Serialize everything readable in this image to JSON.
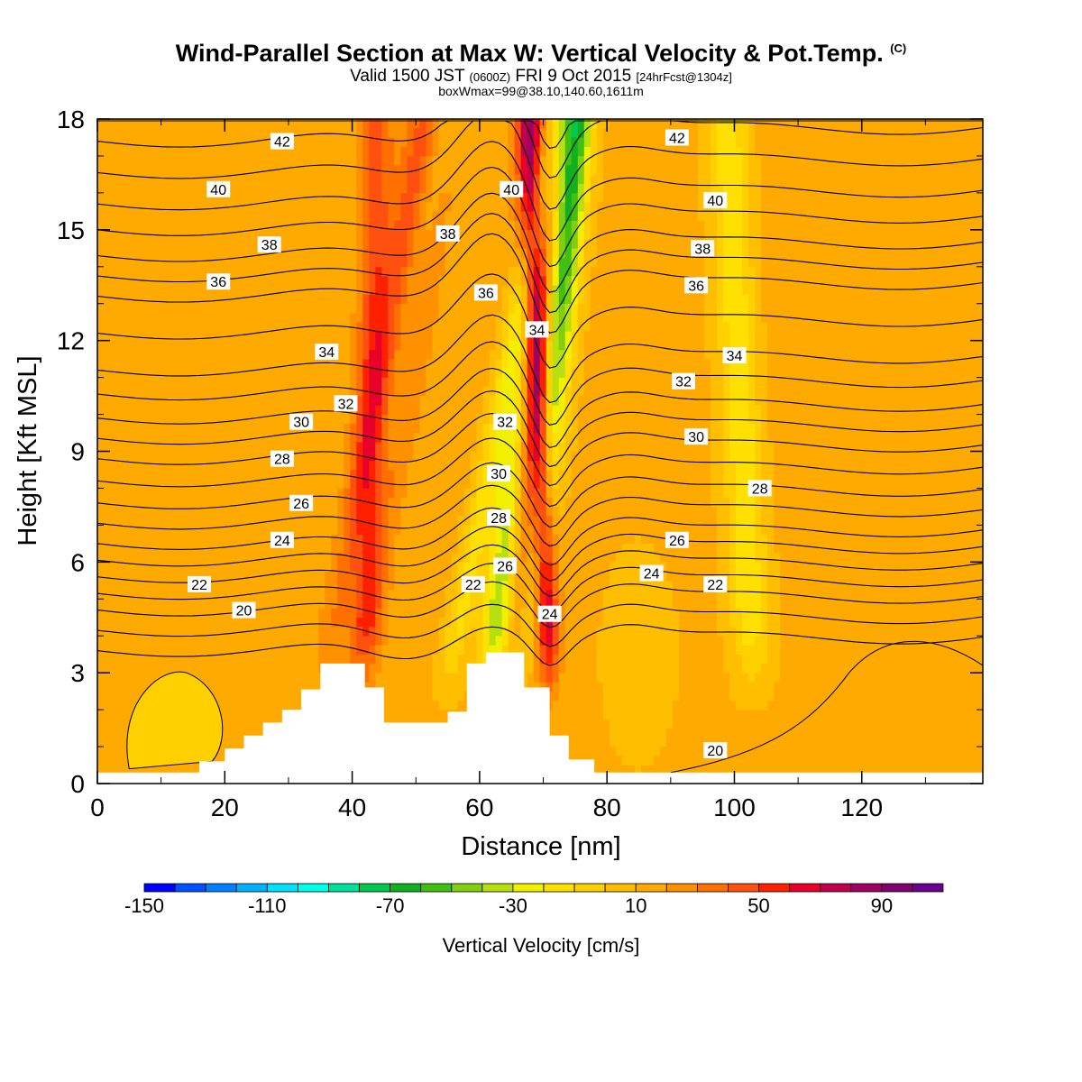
{
  "header": {
    "title": "Wind-Parallel Section at Max W: Vertical Velocity & Pot.Temp.",
    "copyright": "(C)",
    "valid_prefix": "Valid 1500 JST",
    "valid_utc": "(0600Z)",
    "valid_date": "FRI 9 Oct 2015",
    "forecast": "[24hrFcst@1304z]",
    "box_info": "boxWmax=99@38.10,140.60,1611m"
  },
  "chart_data": {
    "type": "heatmap",
    "xlabel": "Distance [nm]",
    "ylabel": "Height [Kft MSL]",
    "xlim": [
      0,
      139
    ],
    "ylim": [
      0,
      18
    ],
    "xticks": [
      "0",
      "20",
      "40",
      "60",
      "80",
      "100",
      "120"
    ],
    "yticks": [
      "0",
      "3",
      "6",
      "9",
      "12",
      "15",
      "18"
    ],
    "colorbar": {
      "title": "Vertical Velocity [cm/s]",
      "tick_labels": [
        "-150",
        "-110",
        "-70",
        "-30",
        "10",
        "50",
        "90"
      ],
      "colors": [
        "#0000ff",
        "#0050ff",
        "#0080ff",
        "#00b0ff",
        "#00e0ff",
        "#00ffe8",
        "#00e09a",
        "#00c850",
        "#10b020",
        "#40c010",
        "#80d010",
        "#b8e010",
        "#f0f000",
        "#ffe000",
        "#ffd000",
        "#ffbf00",
        "#ffaa00",
        "#ff9000",
        "#ff7000",
        "#ff5010",
        "#ff2000",
        "#e8002a",
        "#c0004a",
        "#a00060",
        "#800070",
        "#6a0090"
      ]
    },
    "terrain_kft": [
      [
        0,
        0.3
      ],
      [
        16,
        0.3
      ],
      [
        16,
        0.6
      ],
      [
        20,
        0.6
      ],
      [
        20,
        0.95
      ],
      [
        23,
        0.95
      ],
      [
        23,
        1.3
      ],
      [
        26,
        1.3
      ],
      [
        26,
        1.65
      ],
      [
        29,
        1.65
      ],
      [
        29,
        2.0
      ],
      [
        32,
        2.0
      ],
      [
        32,
        2.55
      ],
      [
        35,
        2.55
      ],
      [
        35,
        3.25
      ],
      [
        42,
        3.25
      ],
      [
        42,
        2.6
      ],
      [
        45,
        2.6
      ],
      [
        45,
        1.65
      ],
      [
        55,
        1.65
      ],
      [
        55,
        1.95
      ],
      [
        58,
        1.95
      ],
      [
        58,
        3.25
      ],
      [
        61,
        3.25
      ],
      [
        61,
        3.55
      ],
      [
        67,
        3.55
      ],
      [
        67,
        2.6
      ],
      [
        71,
        2.6
      ],
      [
        71,
        1.3
      ],
      [
        74,
        1.3
      ],
      [
        74,
        0.65
      ],
      [
        78,
        0.65
      ],
      [
        78,
        0.3
      ],
      [
        139,
        0.3
      ]
    ],
    "velocity_features": [
      {
        "x_base": 42,
        "x_top": 44,
        "w": 2.5,
        "v": 30
      },
      {
        "x_base": 38,
        "x_top": 53,
        "w": 3.5,
        "v": 55
      },
      {
        "x_base": 67,
        "x_top": 71,
        "w": 3.2,
        "v": 85
      },
      {
        "x_base": 71,
        "x_top": 67,
        "w": 2.0,
        "v": 30
      },
      {
        "x_base": 71,
        "x_top": 68,
        "w": 1.5,
        "v": 30
      },
      {
        "x_base": 38,
        "x_top": 54,
        "w": 2.5,
        "v": -45
      },
      {
        "x_base": 62,
        "x_top": 71,
        "w": 2.5,
        "v": -60
      },
      {
        "x_base": 67,
        "x_top": 75,
        "w": 2.6,
        "v": -95
      },
      {
        "x_base": 103,
        "x_top": 99,
        "w": 3.0,
        "v": -30
      },
      {
        "x_base": 55,
        "x_top": 72,
        "w": 2.0,
        "v": -25
      }
    ],
    "theta_levels": [
      {
        "label": "20",
        "base_kft": 3.6
      },
      {
        "label": "22",
        "base_kft": 4.7
      },
      {
        "label": "24",
        "base_kft": 5.6
      },
      {
        "label": "26",
        "base_kft": 6.5
      },
      {
        "label": "28",
        "base_kft": 7.6
      },
      {
        "label": "30",
        "base_kft": 8.8
      },
      {
        "label": "32",
        "base_kft": 9.9
      },
      {
        "label": "34",
        "base_kft": 11.2
      },
      {
        "label": "36",
        "base_kft": 13.2
      },
      {
        "label": "38",
        "base_kft": 14.3
      },
      {
        "label": "40",
        "base_kft": 15.7
      },
      {
        "label": "42",
        "base_kft": 17.4
      }
    ],
    "theta_labels": [
      {
        "text": "42",
        "x": 29,
        "y": 17.4
      },
      {
        "text": "40",
        "x": 19,
        "y": 16.1
      },
      {
        "text": "38",
        "x": 27,
        "y": 14.6
      },
      {
        "text": "36",
        "x": 19,
        "y": 13.6
      },
      {
        "text": "34",
        "x": 36,
        "y": 11.7
      },
      {
        "text": "32",
        "x": 39,
        "y": 10.3
      },
      {
        "text": "30",
        "x": 32,
        "y": 9.8
      },
      {
        "text": "28",
        "x": 29,
        "y": 8.8
      },
      {
        "text": "26",
        "x": 32,
        "y": 7.6
      },
      {
        "text": "24",
        "x": 29,
        "y": 6.6
      },
      {
        "text": "22",
        "x": 16,
        "y": 5.4
      },
      {
        "text": "20",
        "x": 23,
        "y": 4.7
      },
      {
        "text": "22",
        "x": 59,
        "y": 5.4
      },
      {
        "text": "38",
        "x": 55,
        "y": 14.9
      },
      {
        "text": "40",
        "x": 65,
        "y": 16.1
      },
      {
        "text": "36",
        "x": 61,
        "y": 13.3
      },
      {
        "text": "34",
        "x": 69,
        "y": 12.3
      },
      {
        "text": "32",
        "x": 64,
        "y": 9.8
      },
      {
        "text": "30",
        "x": 63,
        "y": 8.4
      },
      {
        "text": "28",
        "x": 63,
        "y": 7.2
      },
      {
        "text": "26",
        "x": 64,
        "y": 5.9
      },
      {
        "text": "24",
        "x": 71,
        "y": 4.6
      },
      {
        "text": "42",
        "x": 91,
        "y": 17.5
      },
      {
        "text": "40",
        "x": 97,
        "y": 15.8
      },
      {
        "text": "38",
        "x": 95,
        "y": 14.5
      },
      {
        "text": "36",
        "x": 94,
        "y": 13.5
      },
      {
        "text": "34",
        "x": 100,
        "y": 11.6
      },
      {
        "text": "32",
        "x": 92,
        "y": 10.9
      },
      {
        "text": "30",
        "x": 94,
        "y": 9.4
      },
      {
        "text": "28",
        "x": 104,
        "y": 8.0
      },
      {
        "text": "26",
        "x": 91,
        "y": 6.6
      },
      {
        "text": "24",
        "x": 87,
        "y": 5.7
      },
      {
        "text": "22",
        "x": 97,
        "y": 5.4
      },
      {
        "text": "20",
        "x": 97,
        "y": 0.9
      }
    ]
  }
}
